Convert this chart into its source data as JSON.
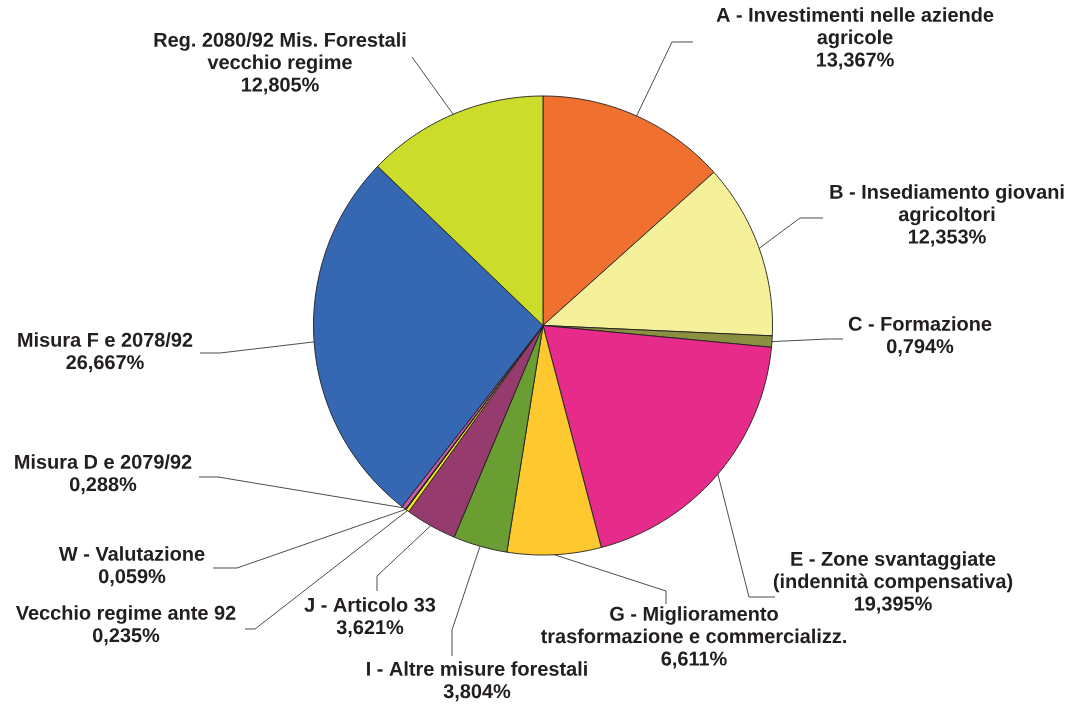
{
  "chart_data": {
    "type": "pie",
    "categories": [
      "A - Investimenti nelle aziende agricole",
      "B - Insediamento giovani agricoltori",
      "C - Formazione",
      "E - Zone svantaggiate (indennità compensativa)",
      "G - Miglioramento trasformazione e commercializz.",
      "I - Altre misure forestali",
      "J - Articolo 33",
      "Vecchio regime ante 92",
      "W - Valutazione",
      "Misura D e 2079/92",
      "Misura F e 2078/92",
      "Reg. 2080/92 Mis. Forestali vecchio regime"
    ],
    "values": [
      13.367,
      12.353,
      0.794,
      19.395,
      6.611,
      3.804,
      3.621,
      0.235,
      0.059,
      0.288,
      26.667,
      12.805
    ],
    "colors": [
      "#f07030",
      "#f5f09a",
      "#8a9040",
      "#e72b8a",
      "#fec92f",
      "#6a9e32",
      "#953b6e",
      "#f0e81a",
      "#3c3c3c",
      "#c85aa8",
      "#3567b2",
      "#cbdc2a"
    ],
    "value_labels": [
      "13,367%",
      "12,353%",
      "0,794%",
      "19,395%",
      "6,611%",
      "3,804%",
      "3,621%",
      "0,235%",
      "0,059%",
      "0,288%",
      "26,667%",
      "12,805%"
    ]
  }
}
